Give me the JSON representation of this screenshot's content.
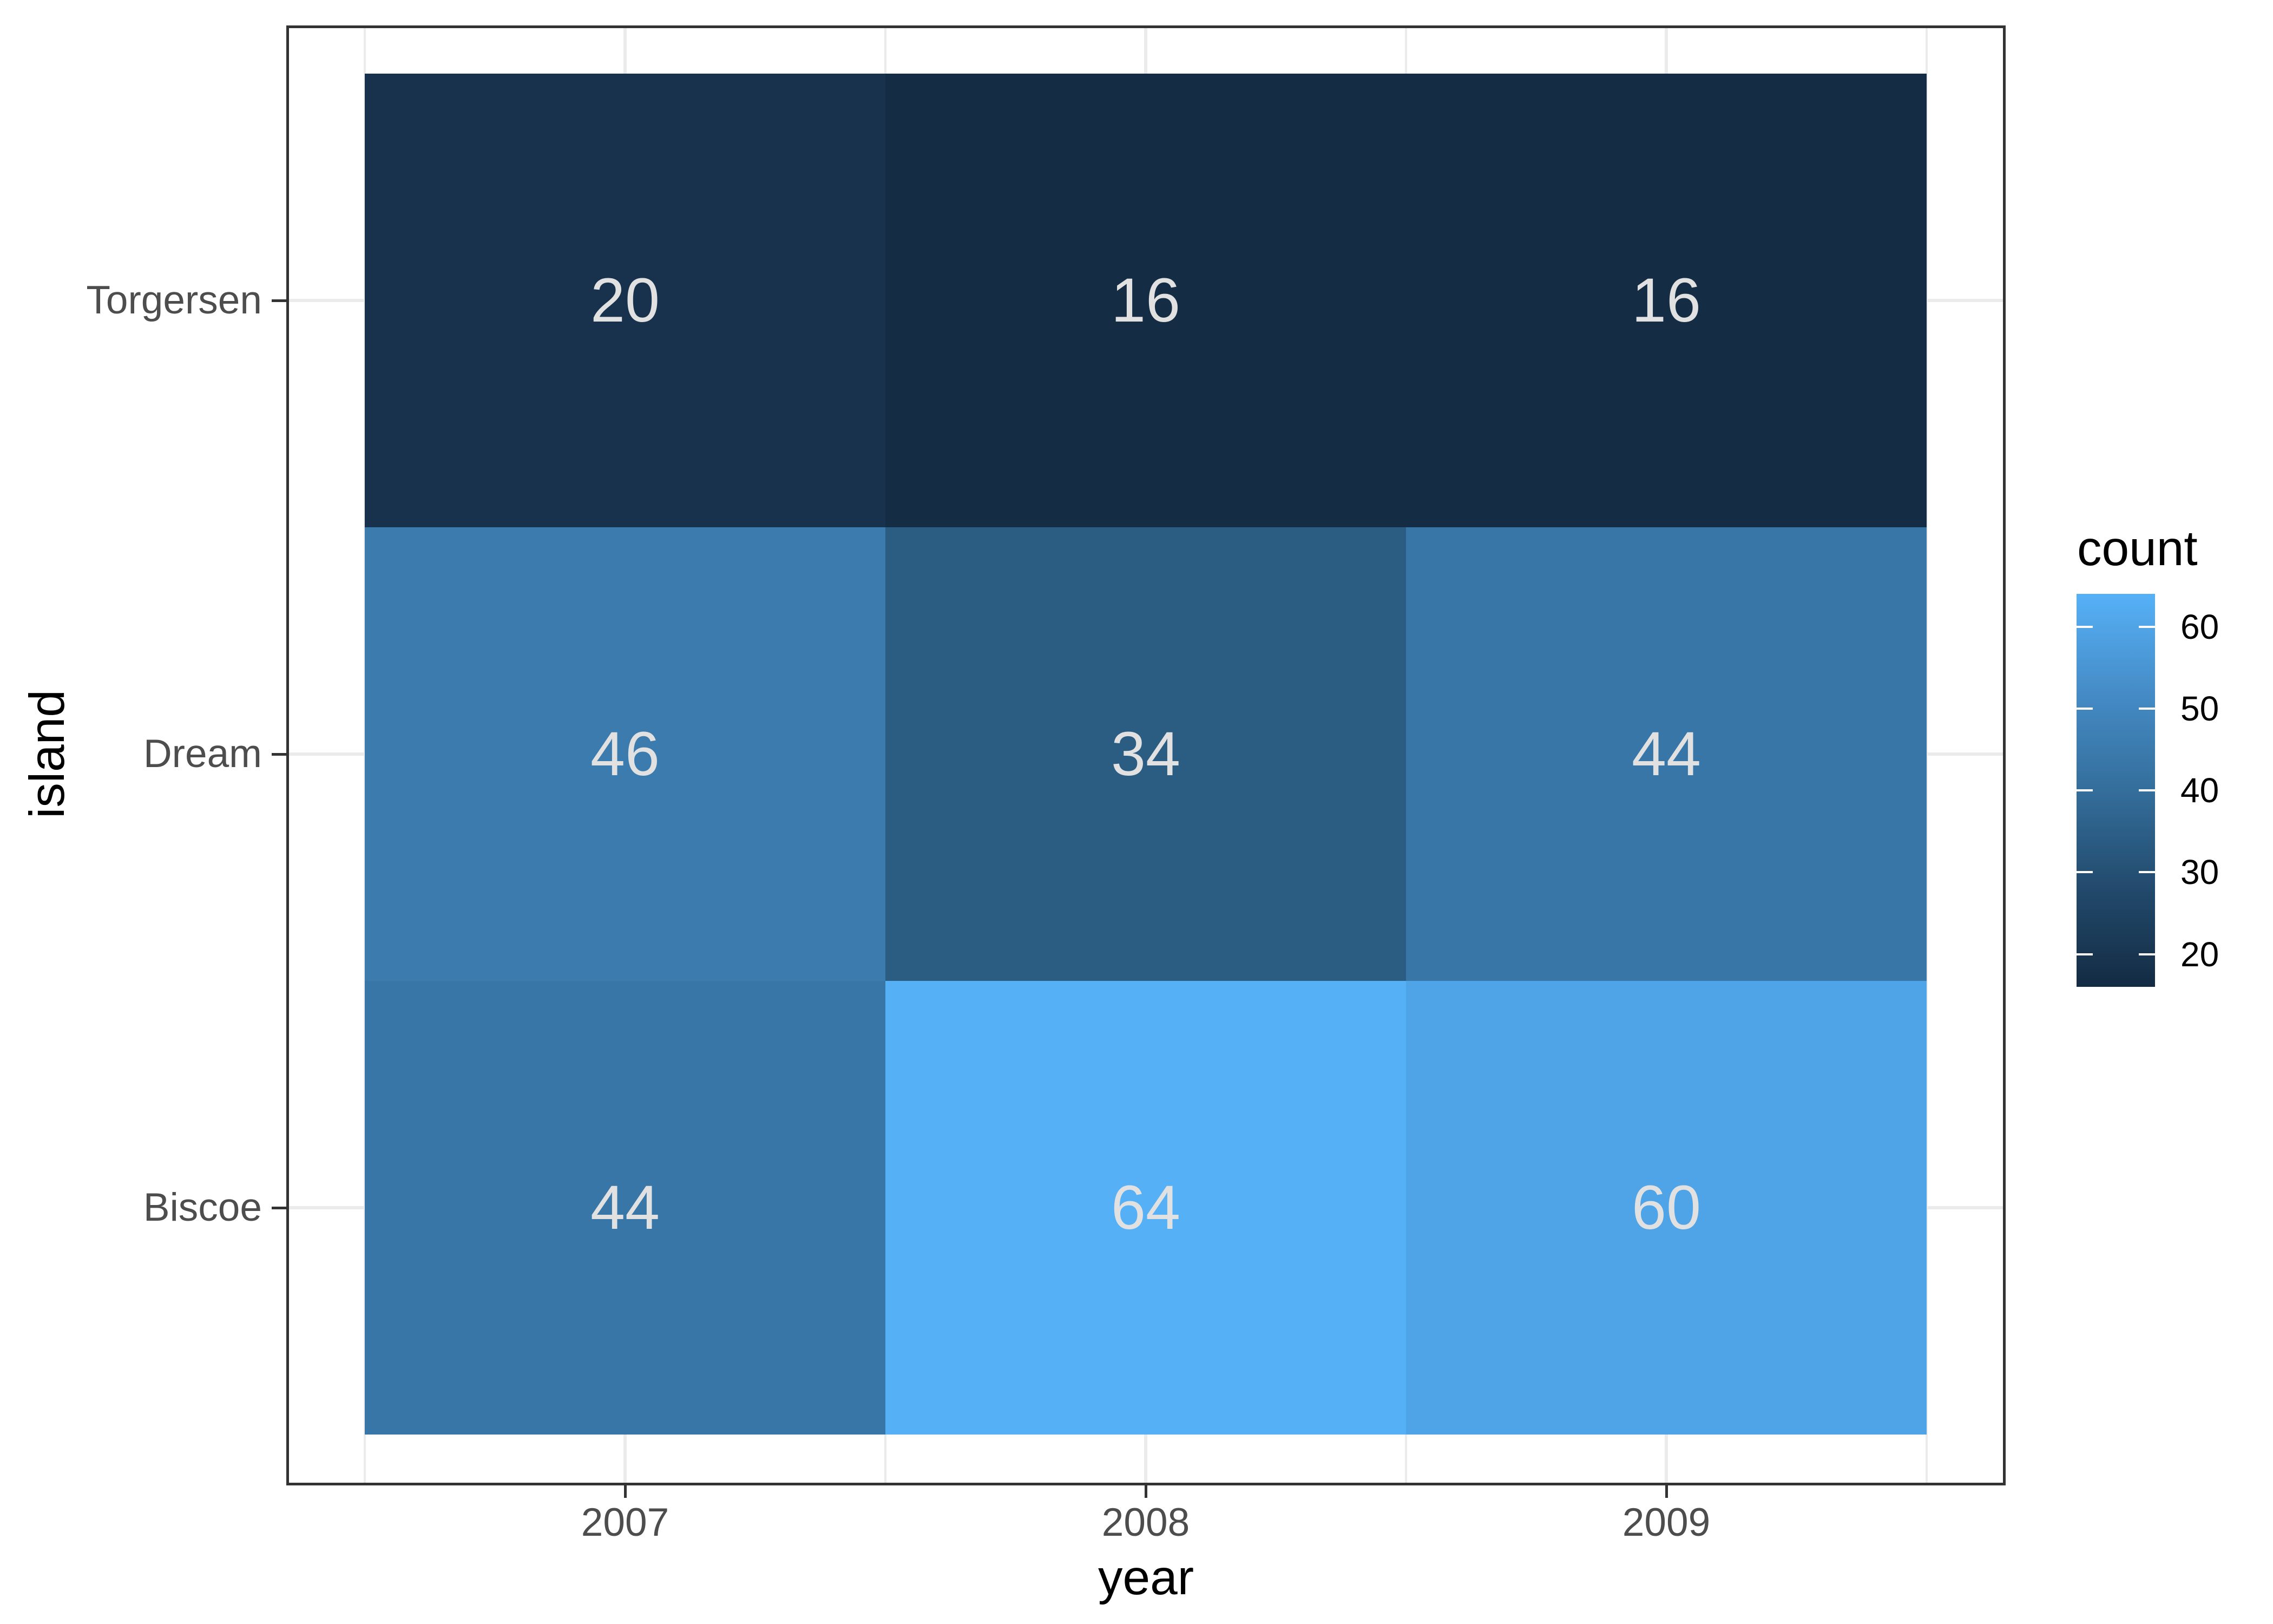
{
  "chart_data": {
    "type": "heatmap",
    "title": "",
    "xlabel": "year",
    "ylabel": "island",
    "x_categories": [
      "2007",
      "2008",
      "2009"
    ],
    "y_categories": [
      "Torgersen",
      "Dream",
      "Biscoe"
    ],
    "series": [
      {
        "name": "Torgersen",
        "values": [
          20,
          16,
          16
        ],
        "cell_colors": [
          "#18324E",
          "#142C44",
          "#142C44"
        ]
      },
      {
        "name": "Dream",
        "values": [
          46,
          34,
          44
        ],
        "cell_colors": [
          "#3B7BAE",
          "#2B5C82",
          "#3876A8"
        ]
      },
      {
        "name": "Biscoe",
        "values": [
          44,
          64,
          60
        ],
        "cell_colors": [
          "#3876A8",
          "#56B0F6",
          "#4FA4E7"
        ]
      }
    ],
    "value_range": [
      16,
      64
    ],
    "grid": "on",
    "legend_position": "right",
    "legend": {
      "title": "count",
      "tick_labels": [
        "60",
        "50",
        "40",
        "30",
        "20"
      ],
      "tick_values": [
        60,
        50,
        40,
        30,
        20
      ],
      "gradient_stops": [
        "#56B1F7",
        "#458CC7",
        "#346E9B",
        "#224A6C",
        "#132B43"
      ]
    }
  },
  "colors": {
    "background": "#FFFFFF",
    "panel_border": "#333333",
    "gridline": "#EBEBEB",
    "axis_tick_mark": "#333333",
    "axis_text": "#4D4D4D",
    "axis_title": "#000000",
    "legend_text": "#000000",
    "tile_value_text": "#E1E1E1",
    "legend_tick_mark": "#FFFFFF"
  }
}
